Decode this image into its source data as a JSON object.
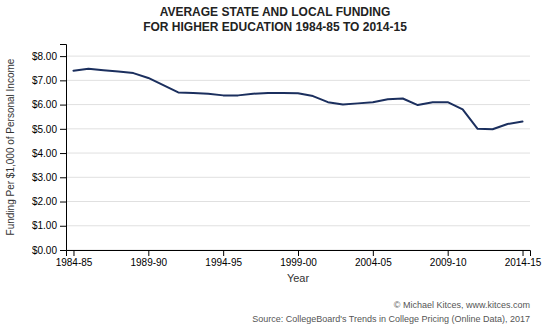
{
  "chart_data": {
    "type": "line",
    "title": "AVERAGE STATE AND LOCAL FUNDING\nFOR HIGHER EDUCATION 1984-85 TO 2014-15",
    "x_label": "Year",
    "y_label": "Funding Per $1,000 of Personal Income",
    "categories": [
      "1984-85",
      null,
      null,
      null,
      null,
      "1989-90",
      null,
      null,
      null,
      null,
      "1994-95",
      null,
      null,
      null,
      null,
      "1999-00",
      null,
      null,
      null,
      null,
      "2004-05",
      null,
      null,
      null,
      null,
      "2009-10",
      null,
      null,
      null,
      null,
      "2014-15"
    ],
    "values": [
      7.4,
      7.48,
      7.42,
      7.37,
      7.3,
      7.1,
      6.8,
      6.5,
      6.48,
      6.45,
      6.38,
      6.38,
      6.45,
      6.48,
      6.48,
      6.47,
      6.35,
      6.1,
      6.0,
      6.05,
      6.1,
      6.22,
      6.25,
      5.98,
      6.1,
      6.1,
      5.8,
      5.0,
      4.98,
      5.2,
      5.3
    ],
    "color": "#1b2f5e",
    "ylim": [
      0.0,
      8.5
    ],
    "yticks": [
      {
        "value": 0.0,
        "label": "$0.00"
      },
      {
        "value": 1.0,
        "label": "$1.00"
      },
      {
        "value": 2.0,
        "label": "$2.00"
      },
      {
        "value": 3.0,
        "label": "$3.00"
      },
      {
        "value": 4.0,
        "label": "$4.00"
      },
      {
        "value": 5.0,
        "label": "$5.00"
      },
      {
        "value": 6.0,
        "label": "$6.00"
      },
      {
        "value": 7.0,
        "label": "$7.00"
      },
      {
        "value": 8.0,
        "label": "$8.00"
      }
    ],
    "grid": true,
    "annotations": [
      "© Michael Kitces, ",
      "www.kitces.com",
      "Source: CollegeBoard's Trends in College Pricing (Online Data), 2017"
    ]
  }
}
